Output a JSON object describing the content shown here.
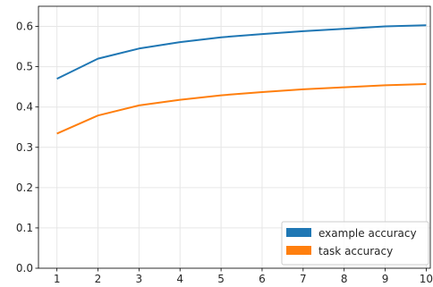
{
  "chart_data": {
    "type": "line",
    "title": "",
    "xlabel": "",
    "ylabel": "",
    "x": [
      1,
      2,
      3,
      4,
      5,
      6,
      7,
      8,
      9,
      10
    ],
    "xticks": [
      "1",
      "2",
      "3",
      "4",
      "5",
      "6",
      "7",
      "8",
      "9",
      "10"
    ],
    "xlim": [
      0.55,
      10.1
    ],
    "ylim": [
      0.0,
      0.65
    ],
    "yticks": [
      "0.0",
      "0.1",
      "0.2",
      "0.3",
      "0.4",
      "0.5",
      "0.6"
    ],
    "grid": true,
    "legend_position": "bottom-right",
    "series": [
      {
        "name": "example accuracy",
        "color": "#1f77b4",
        "values": [
          0.47,
          0.52,
          0.545,
          0.561,
          0.573,
          0.581,
          0.588,
          0.594,
          0.6,
          0.603
        ]
      },
      {
        "name": "task accuracy",
        "color": "#ff7f0e",
        "values": [
          0.334,
          0.379,
          0.404,
          0.418,
          0.429,
          0.437,
          0.444,
          0.449,
          0.454,
          0.457
        ]
      }
    ]
  }
}
